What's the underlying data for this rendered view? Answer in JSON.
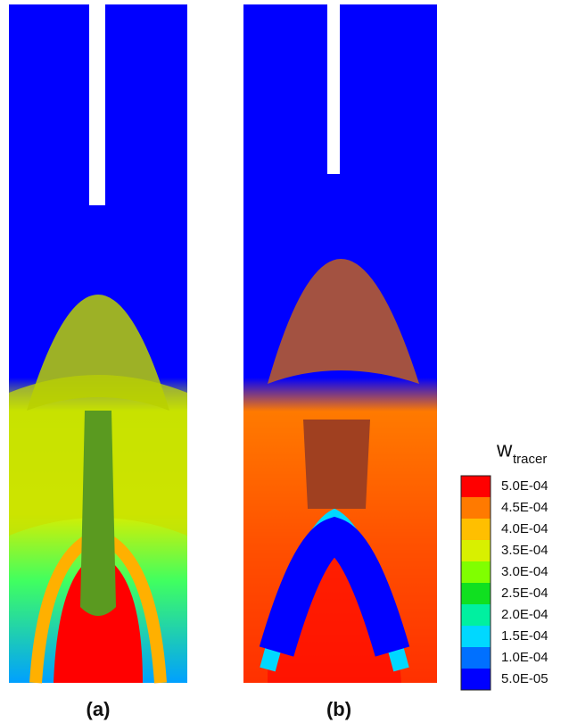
{
  "panels": [
    {
      "label": "(a)"
    },
    {
      "label": "(b)"
    }
  ],
  "colorbar": {
    "title": "w",
    "title_subscript": "tracer",
    "levels": [
      "5.0E-04",
      "4.5E-04",
      "4.0E-04",
      "3.5E-04",
      "3.0E-04",
      "2.5E-04",
      "2.0E-04",
      "1.5E-04",
      "1.0E-04",
      "5.0E-05"
    ],
    "colors": [
      "#ff0000",
      "#ff7a00",
      "#ffbf00",
      "#d8f000",
      "#80ff00",
      "#10e020",
      "#00f0a0",
      "#00d8ff",
      "#0070ff",
      "#0000ff"
    ]
  }
}
